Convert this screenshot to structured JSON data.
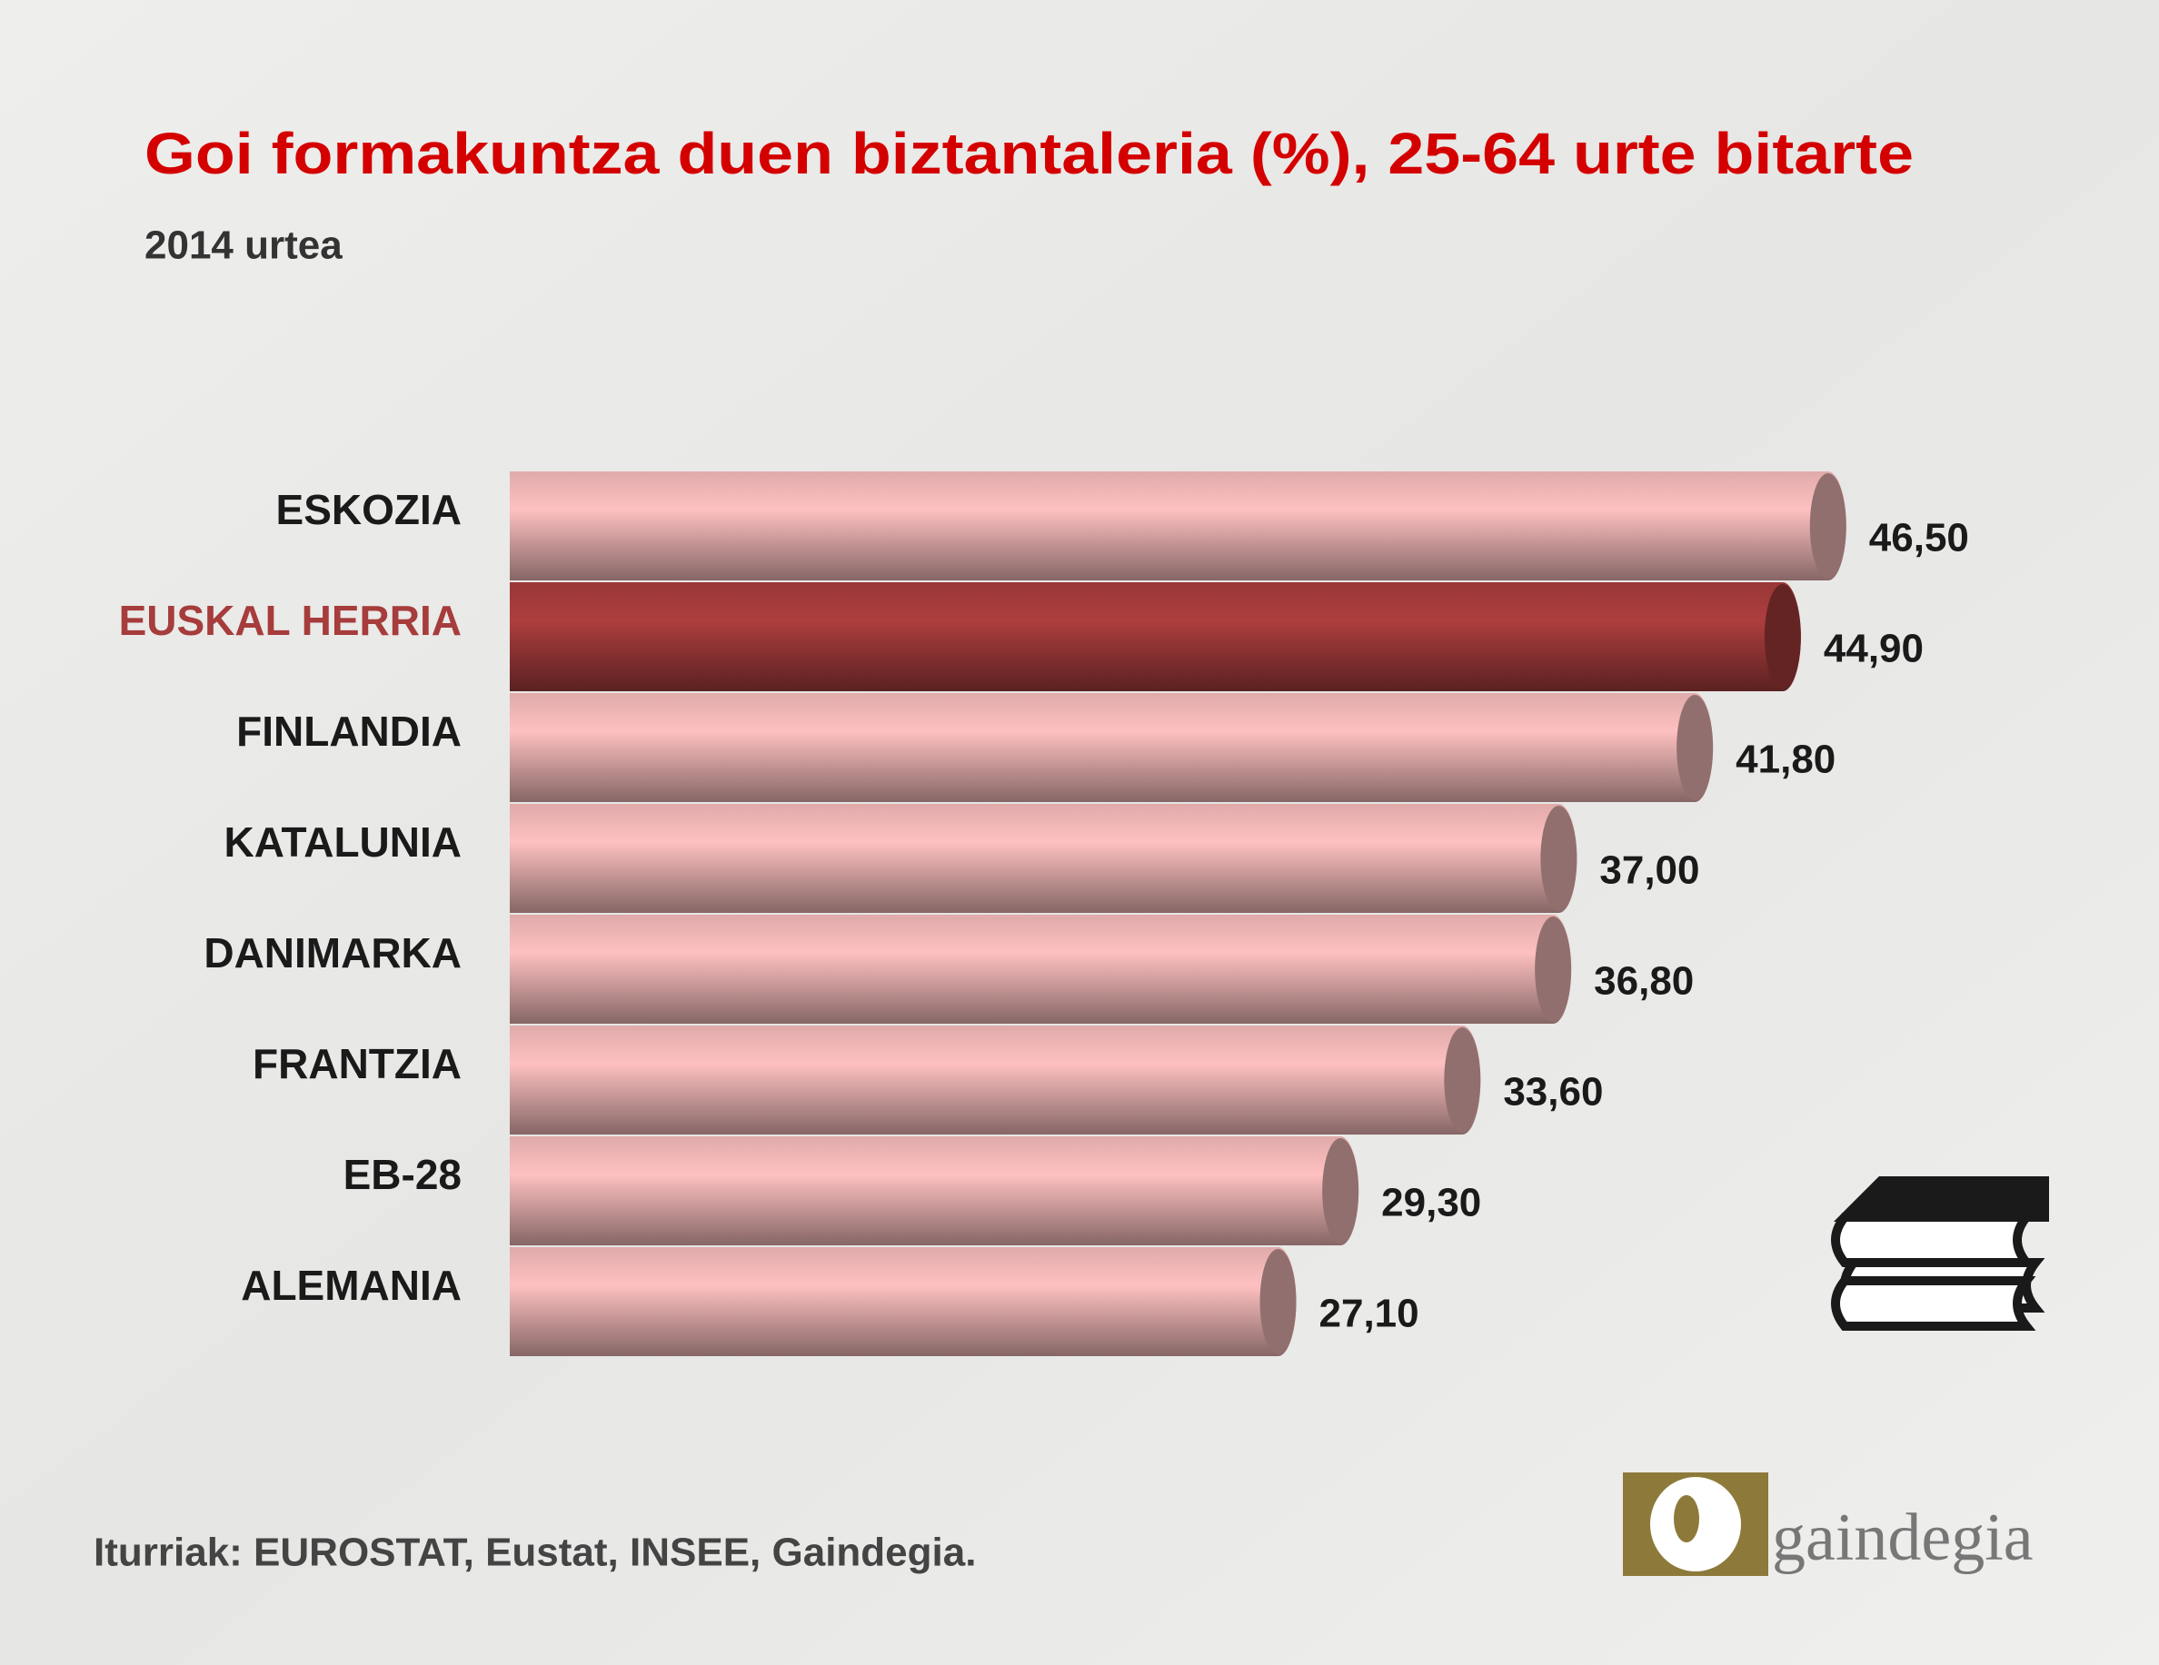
{
  "chart_data": {
    "type": "cylinder-bar",
    "title": "Goi formakuntza duen biztantaleria (%), 25-64 urte bitarte",
    "subtitle": "2014 urtea",
    "categories": [
      "ESKOZIA",
      "EUSKAL HERRIA",
      "FINLANDIA",
      "KATALUNIA",
      "DANIMARKA",
      "FRANTZIA",
      "EB-28",
      "ALEMANIA"
    ],
    "values": [
      46.5,
      44.9,
      41.8,
      37.0,
      36.8,
      33.6,
      29.3,
      27.1
    ],
    "value_labels": [
      "46,50",
      "44,90",
      "41,80",
      "37,00",
      "36,80",
      "33,60",
      "29,30",
      "27,10"
    ],
    "colors": [
      "#f4b9b9",
      "#a63c3c",
      "#f4b9b9",
      "#f4b9b9",
      "#f4b9b9",
      "#f4b9b9",
      "#f4b9b9",
      "#f4b9b9"
    ],
    "label_colors": [
      "#1a1a1a",
      "#a63c3c",
      "#1a1a1a",
      "#1a1a1a",
      "#1a1a1a",
      "#1a1a1a",
      "#1a1a1a",
      "#1a1a1a"
    ],
    "source": "Iturriak: EUROSTAT, Eustat, INSEE, Gaindegia.",
    "logo": "gaindegia"
  }
}
